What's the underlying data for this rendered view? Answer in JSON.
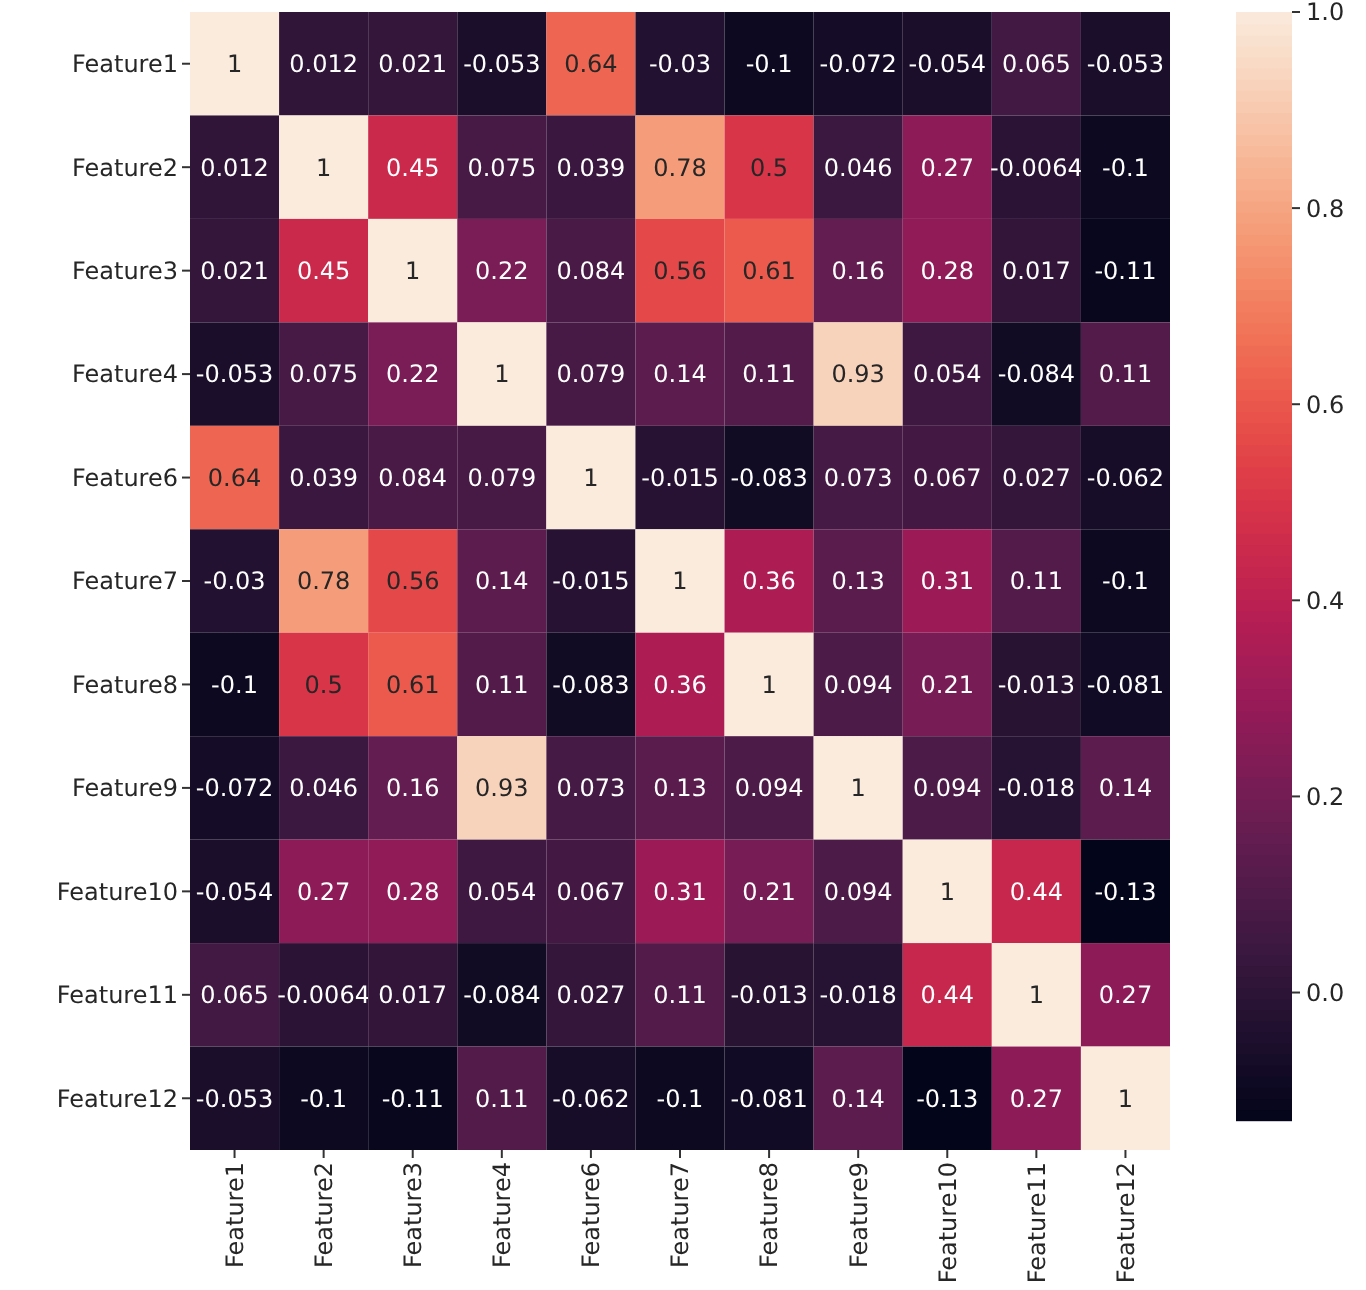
{
  "chart_data": {
    "type": "heatmap",
    "categories": [
      "Feature1",
      "Feature2",
      "Feature3",
      "Feature4",
      "Feature6",
      "Feature7",
      "Feature8",
      "Feature9",
      "Feature10",
      "Feature11",
      "Feature12"
    ],
    "y_categories": [
      "Feature1",
      "Feature2",
      "Feature3",
      "Feature4",
      "Feature6",
      "Feature7",
      "Feature8",
      "Feature9",
      "Feature10",
      "Feature11",
      "Feature12"
    ],
    "cells": [
      [
        1,
        0.012,
        0.021,
        -0.053,
        0.64,
        -0.03,
        -0.1,
        -0.072,
        -0.054,
        0.065,
        -0.053
      ],
      [
        0.012,
        1,
        0.45,
        0.075,
        0.039,
        0.78,
        0.5,
        0.046,
        0.27,
        -0.0064,
        -0.1
      ],
      [
        0.021,
        0.45,
        1,
        0.22,
        0.084,
        0.56,
        0.61,
        0.16,
        0.28,
        0.017,
        -0.11
      ],
      [
        -0.053,
        0.075,
        0.22,
        1,
        0.079,
        0.14,
        0.11,
        0.93,
        0.054,
        -0.084,
        0.11
      ],
      [
        0.64,
        0.039,
        0.084,
        0.079,
        1,
        -0.015,
        -0.083,
        0.073,
        0.067,
        0.027,
        -0.062
      ],
      [
        -0.03,
        0.78,
        0.56,
        0.14,
        -0.015,
        1,
        0.36,
        0.13,
        0.31,
        0.11,
        -0.1
      ],
      [
        -0.1,
        0.5,
        0.61,
        0.11,
        -0.083,
        0.36,
        1,
        0.094,
        0.21,
        -0.013,
        -0.081
      ],
      [
        -0.072,
        0.046,
        0.16,
        0.93,
        0.073,
        0.13,
        0.094,
        1,
        0.094,
        -0.018,
        0.14
      ],
      [
        -0.054,
        0.27,
        0.28,
        0.054,
        0.067,
        0.31,
        0.21,
        0.094,
        1,
        0.44,
        -0.13
      ],
      [
        0.065,
        -0.0064,
        0.017,
        -0.084,
        0.027,
        0.11,
        -0.013,
        -0.018,
        0.44,
        1,
        0.27
      ],
      [
        -0.053,
        -0.1,
        -0.11,
        0.11,
        -0.062,
        -0.1,
        -0.081,
        0.14,
        -0.13,
        0.27,
        1
      ]
    ],
    "data_labels": true,
    "clim": [
      -0.13,
      1
    ],
    "cticks": [
      {
        "value": 0,
        "label": "0.0"
      },
      {
        "value": 0.2,
        "label": "0.2"
      },
      {
        "value": 0.4,
        "label": "0.4"
      },
      {
        "value": 0.6,
        "label": "0.6"
      },
      {
        "value": 0.8,
        "label": "0.8"
      },
      {
        "value": 1,
        "label": "1.0"
      }
    ]
  }
}
